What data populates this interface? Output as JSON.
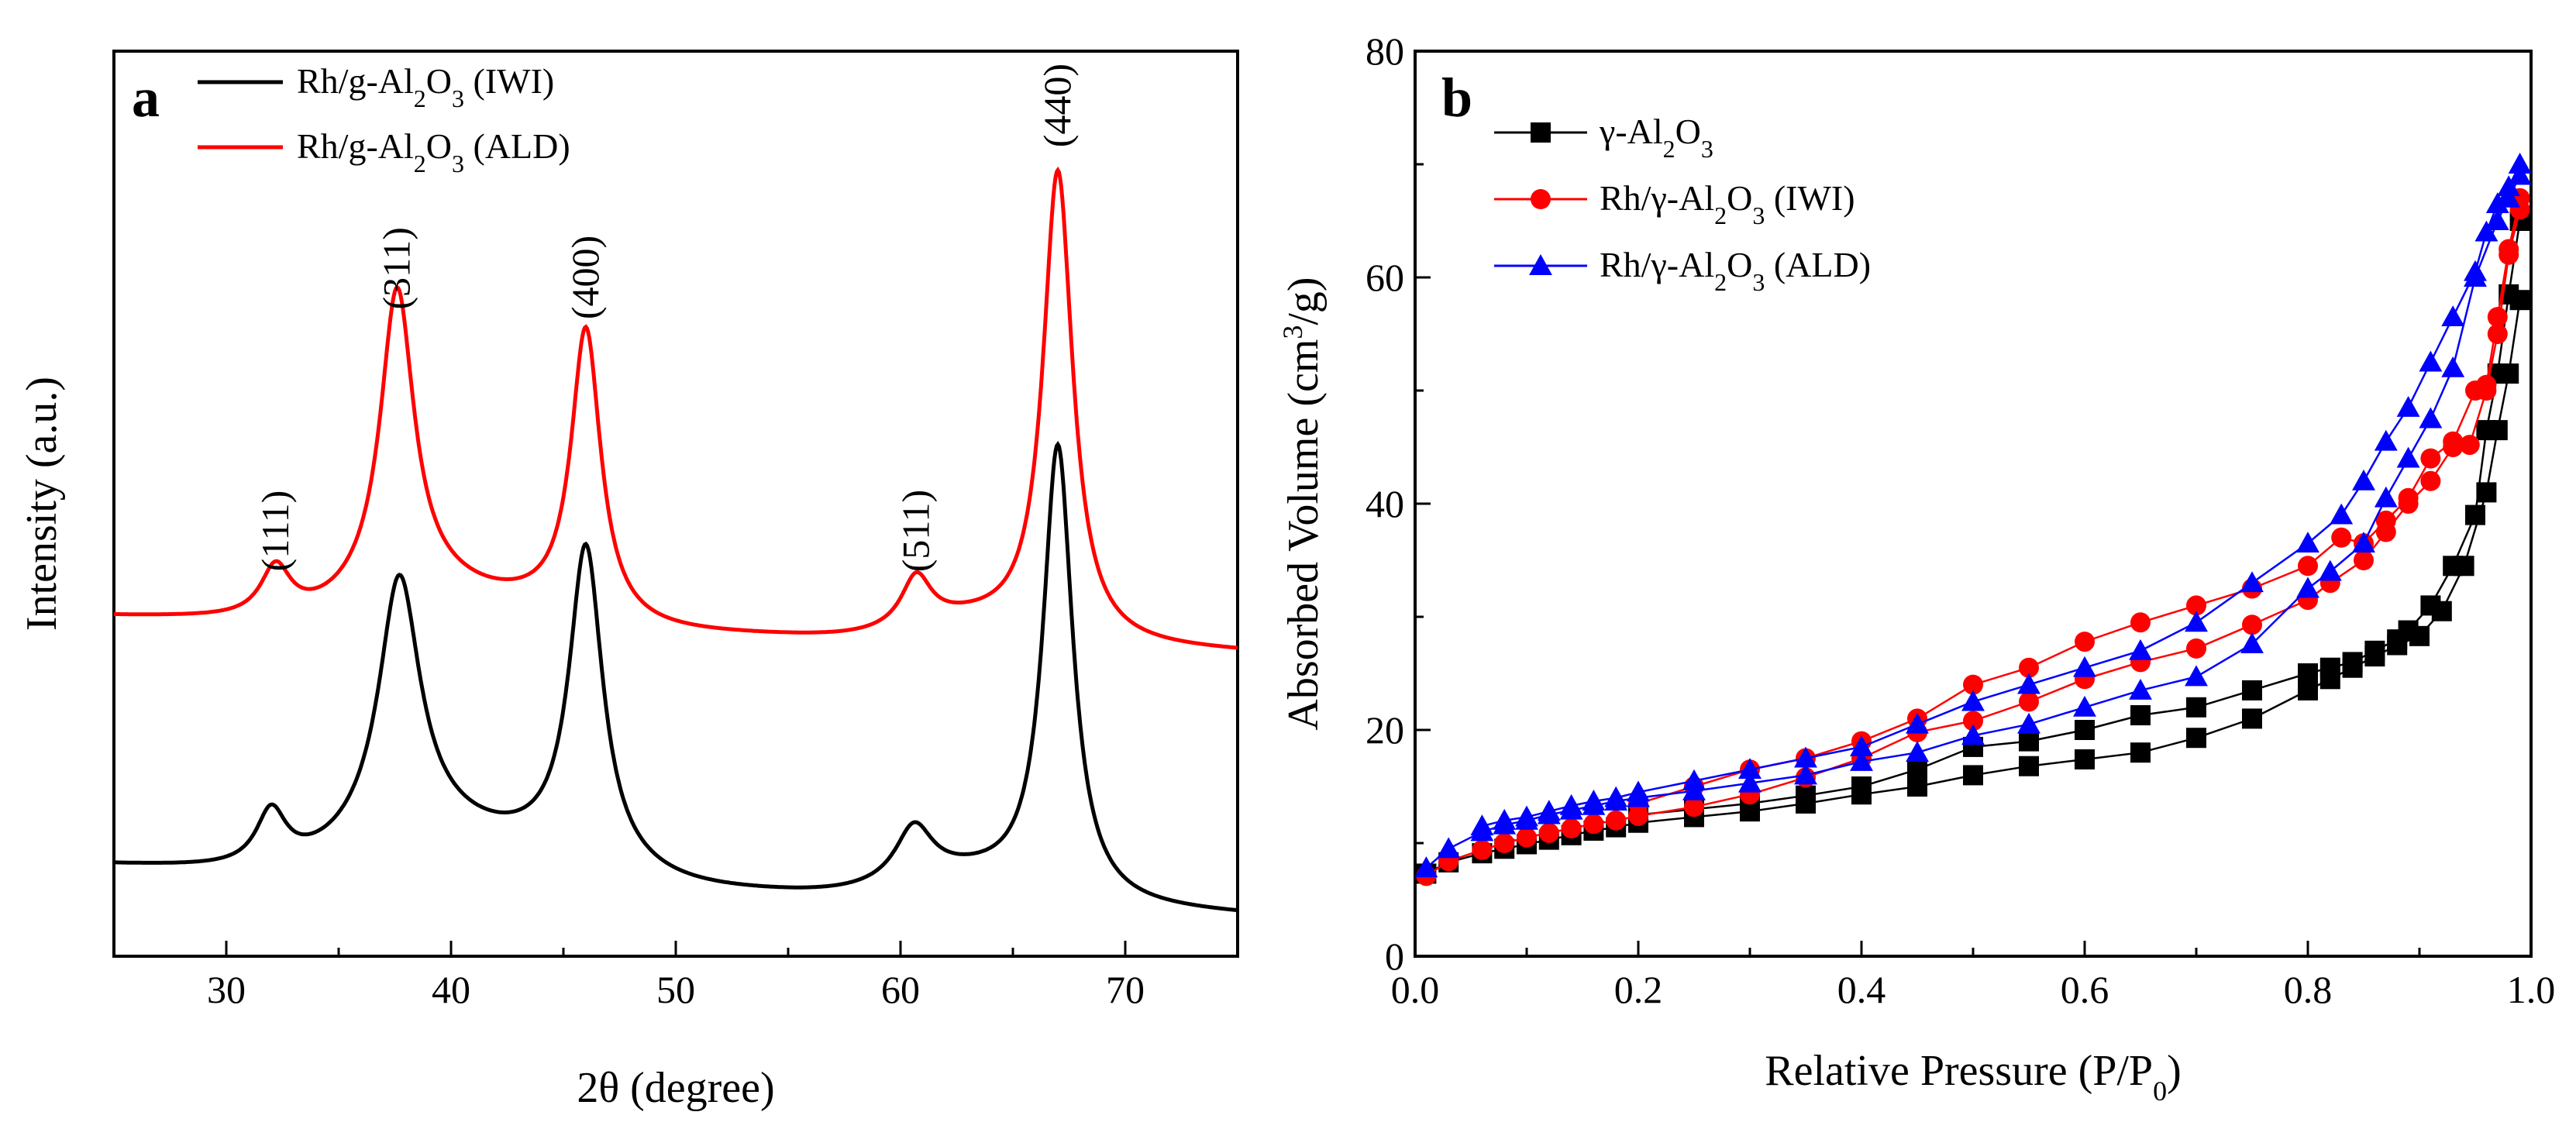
{
  "chart_data": [
    {
      "type": "line",
      "panel": "a",
      "xlabel": "2θ (degree)",
      "ylabel": "Intensity (a.u.)",
      "xlim": [
        25,
        75
      ],
      "ylim": [
        0,
        100
      ],
      "x_ticks": [
        30,
        40,
        50,
        60,
        70
      ],
      "x_tick_labels": [
        "30",
        "40",
        "50",
        "60",
        "70"
      ],
      "legend_position": "top-left",
      "legend": [
        {
          "label": "Rh/g-Al",
          "sub1": "2",
          "mid": "O",
          "sub2": "3",
          "tail": " (IWI)",
          "color": "#000000"
        },
        {
          "label": "Rh/g-Al",
          "sub1": "2",
          "mid": "O",
          "sub2": "3",
          "tail": " (ALD)",
          "color": "#ff0000"
        }
      ],
      "series": [
        {
          "name": "Rh/g-Al2O3 (IWI)",
          "color": "#000000",
          "baseline": {
            "start": 10,
            "end": 4.5
          },
          "peaks": [
            {
              "center": 32.0,
              "height": 6,
              "width": 0.8
            },
            {
              "center": 37.7,
              "height": 28,
              "width": 1.1
            },
            {
              "center": 46.0,
              "height": 34.5,
              "width": 0.9
            },
            {
              "center": 60.6,
              "height": 6,
              "width": 1.0
            },
            {
              "center": 67.0,
              "height": 50,
              "width": 0.8
            }
          ],
          "broad": [
            {
              "center": 38.5,
              "height": 5,
              "width": 4.0
            },
            {
              "center": 44.5,
              "height": 3,
              "width": 4.0
            },
            {
              "center": 63.0,
              "height": 2.5,
              "width": 4.0
            }
          ]
        },
        {
          "name": "Rh/g-Al2O3 (ALD)",
          "color": "#ff0000",
          "baseline": {
            "start": 37.5,
            "end": 33.5
          },
          "peaks": [
            {
              "center": 32.2,
              "height": 5.5,
              "width": 0.8
            },
            {
              "center": 37.6,
              "height": 33,
              "width": 0.9
            },
            {
              "center": 46.0,
              "height": 32,
              "width": 0.8
            },
            {
              "center": 60.7,
              "height": 5.5,
              "width": 0.8
            },
            {
              "center": 67.0,
              "height": 52,
              "width": 0.8
            }
          ],
          "broad": [
            {
              "center": 38.3,
              "height": 4,
              "width": 3.5
            },
            {
              "center": 43.5,
              "height": 2,
              "width": 3.5
            },
            {
              "center": 63.0,
              "height": 2,
              "width": 3.5
            }
          ]
        }
      ],
      "annotations": [
        {
          "text": "(111)",
          "x": 32.2,
          "y": 47
        },
        {
          "text": "(311)",
          "x": 37.6,
          "y": 76
        },
        {
          "text": "(400)",
          "x": 46.0,
          "y": 75
        },
        {
          "text": "(511)",
          "x": 60.7,
          "y": 47
        },
        {
          "text": "(440)",
          "x": 67.0,
          "y": 94
        }
      ]
    },
    {
      "type": "line",
      "panel": "b",
      "xlabel": "Relative Pressure (P/P",
      "xlabel_sub": "0",
      "xlabel_tail": ")",
      "ylabel": "Absorbed Volume (cm",
      "ylabel_sup": "3",
      "ylabel_tail": "/g)",
      "xlim": [
        0,
        1
      ],
      "ylim": [
        0,
        80
      ],
      "x_ticks": [
        0,
        0.2,
        0.4,
        0.6,
        0.8,
        1.0
      ],
      "x_tick_labels": [
        "0.0",
        "0.2",
        "0.4",
        "0.6",
        "0.8",
        "1.0"
      ],
      "y_ticks": [
        0,
        20,
        40,
        60,
        80
      ],
      "y_tick_labels": [
        "0",
        "20",
        "40",
        "60",
        "80"
      ],
      "legend_position": "top-left",
      "legend": [
        {
          "label": "γ-Al",
          "sub1": "2",
          "mid": "O",
          "sub2": "3",
          "tail": "",
          "color": "#000000",
          "marker": "square"
        },
        {
          "label": "Rh/γ-Al",
          "sub1": "2",
          "mid": "O",
          "sub2": "3",
          "tail": " (IWI)",
          "color": "#ff0000",
          "marker": "circle"
        },
        {
          "label": "Rh/γ-Al",
          "sub1": "2",
          "mid": "O",
          "sub2": "3",
          "tail": " (ALD)",
          "color": "#0000ff",
          "marker": "triangle"
        }
      ],
      "series": [
        {
          "name": "γ-Al2O3",
          "color": "#000000",
          "marker": "square",
          "adsorption": {
            "x": [
              0.01,
              0.03,
              0.06,
              0.08,
              0.1,
              0.12,
              0.14,
              0.16,
              0.18,
              0.2,
              0.25,
              0.3,
              0.35,
              0.4,
              0.45,
              0.5,
              0.55,
              0.6,
              0.65,
              0.7,
              0.75,
              0.8,
              0.82,
              0.84,
              0.86,
              0.88,
              0.9,
              0.92,
              0.94,
              0.96,
              0.97,
              0.98,
              0.99
            ],
            "y": [
              7.3,
              8.3,
              9.1,
              9.5,
              9.9,
              10.3,
              10.7,
              11.1,
              11.4,
              11.8,
              12.3,
              12.8,
              13.5,
              14.3,
              15.0,
              16.0,
              16.8,
              17.4,
              18.0,
              19.3,
              21.0,
              23.5,
              24.5,
              25.5,
              26.5,
              27.5,
              28.3,
              30.5,
              34.5,
              41.0,
              46.5,
              51.5,
              58.0
            ]
          },
          "desorption": {
            "x": [
              0.99,
              0.98,
              0.97,
              0.96,
              0.95,
              0.93,
              0.91,
              0.89,
              0.88,
              0.86,
              0.84,
              0.82,
              0.8,
              0.75,
              0.7,
              0.65,
              0.6,
              0.55,
              0.5,
              0.45,
              0.4,
              0.35,
              0.3,
              0.25,
              0.2
            ],
            "y": [
              65.0,
              58.5,
              51.5,
              46.5,
              39.0,
              34.5,
              31.0,
              28.8,
              28.0,
              27.0,
              26.0,
              25.5,
              25.0,
              23.5,
              22.0,
              21.3,
              20.0,
              19.0,
              18.5,
              16.5,
              15.0,
              14.2,
              13.5,
              13.0,
              12.5
            ]
          }
        },
        {
          "name": "Rh/γ-Al2O3 (IWI)",
          "color": "#ff0000",
          "marker": "circle",
          "adsorption": {
            "x": [
              0.01,
              0.03,
              0.06,
              0.08,
              0.1,
              0.12,
              0.14,
              0.16,
              0.18,
              0.2,
              0.25,
              0.3,
              0.35,
              0.4,
              0.45,
              0.5,
              0.55,
              0.6,
              0.65,
              0.7,
              0.75,
              0.8,
              0.82,
              0.85,
              0.87,
              0.89,
              0.91,
              0.93,
              0.945,
              0.96,
              0.97,
              0.98,
              0.99
            ],
            "y": [
              7.1,
              8.4,
              9.4,
              10.0,
              10.5,
              10.9,
              11.3,
              11.7,
              12.0,
              12.4,
              13.2,
              14.3,
              15.8,
              17.5,
              19.8,
              20.8,
              22.5,
              24.5,
              26.0,
              27.2,
              29.3,
              31.5,
              33.0,
              35.0,
              37.5,
              40.0,
              42.0,
              45.0,
              45.2,
              50.0,
              55.0,
              62.0,
              66.0
            ]
          },
          "desorption": {
            "x": [
              0.99,
              0.98,
              0.97,
              0.96,
              0.95,
              0.93,
              0.91,
              0.89,
              0.87,
              0.85,
              0.83,
              0.8,
              0.75,
              0.7,
              0.65,
              0.6,
              0.55,
              0.5,
              0.45,
              0.4,
              0.35,
              0.3,
              0.25,
              0.2
            ],
            "y": [
              67.0,
              62.5,
              56.5,
              50.5,
              50.0,
              45.5,
              44.0,
              40.5,
              38.5,
              36.5,
              37.0,
              34.5,
              32.5,
              31.0,
              29.5,
              27.8,
              25.5,
              24.0,
              21.0,
              19.0,
              17.5,
              16.5,
              15.0,
              13.5
            ]
          }
        },
        {
          "name": "Rh/γ-Al2O3 (ALD)",
          "color": "#0000ff",
          "marker": "triangle",
          "adsorption": {
            "x": [
              0.01,
              0.03,
              0.06,
              0.08,
              0.1,
              0.12,
              0.14,
              0.16,
              0.18,
              0.2,
              0.25,
              0.3,
              0.35,
              0.4,
              0.45,
              0.5,
              0.55,
              0.6,
              0.65,
              0.7,
              0.75,
              0.8,
              0.82,
              0.85,
              0.87,
              0.89,
              0.91,
              0.93,
              0.95,
              0.97,
              0.98,
              0.99
            ],
            "y": [
              7.8,
              9.5,
              11.0,
              11.6,
              12.0,
              12.5,
              12.9,
              13.3,
              13.7,
              14.0,
              14.6,
              15.3,
              16.0,
              17.2,
              18.0,
              19.5,
              20.5,
              22.0,
              23.5,
              24.7,
              27.6,
              32.5,
              34.0,
              36.5,
              40.5,
              44.0,
              47.5,
              52.0,
              60.0,
              65.0,
              67.0,
              69.0
            ]
          },
          "desorption": {
            "x": [
              0.99,
              0.98,
              0.97,
              0.96,
              0.95,
              0.93,
              0.91,
              0.89,
              0.87,
              0.85,
              0.83,
              0.8,
              0.75,
              0.7,
              0.65,
              0.6,
              0.55,
              0.5,
              0.45,
              0.4,
              0.35,
              0.3,
              0.25,
              0.2,
              0.18,
              0.16,
              0.14,
              0.12,
              0.1,
              0.08,
              0.06
            ],
            "y": [
              70.0,
              68.0,
              66.5,
              64.0,
              60.5,
              56.5,
              52.5,
              48.5,
              45.5,
              42.0,
              39.0,
              36.5,
              33.0,
              29.5,
              27.0,
              25.5,
              24.0,
              22.5,
              20.5,
              18.5,
              17.5,
              16.5,
              15.5,
              14.5,
              14.0,
              13.7,
              13.3,
              12.8,
              12.3,
              12.0,
              11.5
            ]
          }
        }
      ]
    }
  ]
}
